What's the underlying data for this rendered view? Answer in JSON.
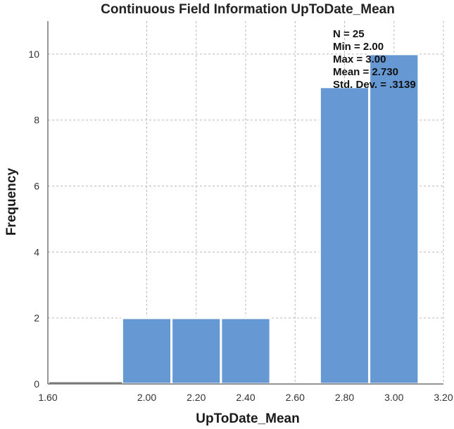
{
  "chart_data": {
    "type": "bar",
    "title": "Continuous Field Information UpToDate_Mean",
    "xlabel": "UpToDate_Mean",
    "ylabel": "Frequency",
    "bins": [
      {
        "from": 1.9,
        "to": 2.1,
        "count": 2
      },
      {
        "from": 2.1,
        "to": 2.3,
        "count": 2
      },
      {
        "from": 2.3,
        "to": 2.5,
        "count": 2
      },
      {
        "from": 2.5,
        "to": 2.7,
        "count": 0
      },
      {
        "from": 2.7,
        "to": 2.9,
        "count": 9
      },
      {
        "from": 2.9,
        "to": 3.1,
        "count": 10
      }
    ],
    "xlim": [
      1.6,
      3.2
    ],
    "ylim": [
      0,
      11
    ],
    "x_ticks": [
      "1.60",
      "2.00",
      "2.20",
      "2.40",
      "2.60",
      "2.80",
      "3.00",
      "3.20"
    ],
    "x_tick_values": [
      1.6,
      2.0,
      2.2,
      2.4,
      2.6,
      2.8,
      3.0,
      3.2
    ],
    "y_ticks": [
      "0",
      "2",
      "4",
      "6",
      "8",
      "10"
    ],
    "y_tick_values": [
      0,
      2,
      4,
      6,
      8,
      10
    ],
    "grid": true,
    "bar_color": "#6699d3",
    "stats": [
      "N = 25",
      "Min = 2.00",
      "Max = 3.00",
      "Mean = 2.730",
      "Std. Dev. = .3139"
    ]
  }
}
